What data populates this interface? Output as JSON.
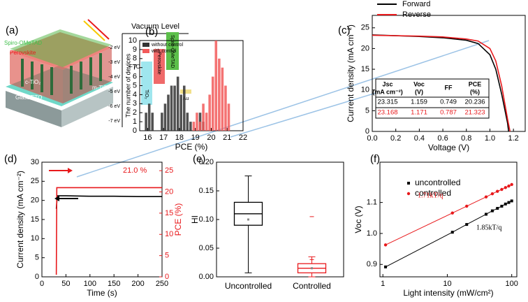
{
  "diagram": {
    "panel_label": "(a)",
    "layers": [
      "Spiro-OMeTAD",
      "Perovskite",
      "c-TiO₂",
      "m-TiO₂",
      "Glass/FTO"
    ],
    "vacuum_level": "Vacuum Level",
    "energy_ticks": [
      "-2 eV",
      "-3 eV",
      "-4 eV",
      "-5 eV",
      "-6 eV",
      "-7 eV"
    ],
    "materials": [
      "FTO",
      "TiO₂",
      "Perovskite",
      "Spiro-OMeTAD",
      "Au"
    ]
  },
  "chart_data": [
    {
      "type": "histogram",
      "panel_label": "(b)",
      "xlabel": "PCE (%)",
      "ylabel": "The number of devices",
      "bins": [
        15.8,
        16,
        16.2,
        16.4,
        16.6,
        16.8,
        17,
        17.2,
        17.4,
        17.6,
        17.8,
        18,
        18.2,
        18.4,
        18.6,
        18.8,
        19,
        19.2,
        19.4,
        19.6,
        19.8,
        20,
        20.2,
        20.4,
        20.6,
        20.8,
        21,
        21.2,
        21.4
      ],
      "series": [
        {
          "name": "without control",
          "color": "#333333",
          "values": [
            2,
            3,
            2,
            0,
            0,
            2,
            3,
            4,
            5,
            5,
            6,
            4,
            5,
            2,
            1,
            0,
            0,
            2,
            1,
            0,
            0,
            0,
            0,
            0,
            0,
            0,
            0,
            0
          ]
        },
        {
          "name": "with control",
          "color": "#f25a5a",
          "values": [
            0,
            0,
            0,
            0,
            0,
            0,
            0,
            0,
            0,
            0,
            0,
            0,
            0,
            0,
            0,
            1,
            2,
            1,
            3,
            2,
            4,
            6,
            10,
            8,
            7,
            5,
            3,
            0
          ]
        }
      ],
      "xlim": [
        15.5,
        22
      ],
      "ylim": [
        0,
        10
      ],
      "xticks": [
        16,
        17,
        18,
        19,
        20,
        21,
        22
      ],
      "yticks": [
        0,
        1,
        2,
        3,
        4,
        5,
        6,
        7,
        8,
        9,
        10
      ],
      "legend": "upper left"
    },
    {
      "type": "line",
      "panel_label": "(c)",
      "xlabel": "Voltage (V)",
      "ylabel": "Current density (mA cm⁻²)",
      "series": [
        {
          "name": "Forward",
          "color": "#000000",
          "x": [
            0,
            0.2,
            0.4,
            0.6,
            0.8,
            0.9,
            1.0,
            1.05,
            1.1,
            1.15,
            1.159
          ],
          "values": [
            23.3,
            23.1,
            22.9,
            22.6,
            22.0,
            21.2,
            18.5,
            15.0,
            9.0,
            2.0,
            0
          ]
        },
        {
          "name": "Reverse",
          "color": "#e8191c",
          "x": [
            0,
            0.2,
            0.4,
            0.6,
            0.8,
            0.9,
            1.0,
            1.05,
            1.1,
            1.15,
            1.171
          ],
          "values": [
            23.2,
            23.1,
            23.0,
            22.8,
            22.3,
            21.8,
            20.0,
            17.0,
            11.0,
            3.0,
            0
          ]
        }
      ],
      "xlim": [
        0,
        1.3
      ],
      "ylim": [
        0,
        28
      ],
      "xticks": [
        {
          "value": 0,
          "label": "0.0"
        },
        0.2,
        0.4,
        0.6,
        0.8,
        {
          "value": 1,
          "label": "1.0"
        },
        1.2
      ],
      "yticks": [
        0,
        5,
        10,
        15,
        20,
        25
      ],
      "legend": "top",
      "table": {
        "header": [
          [
            "Jsc",
            "(mA cm⁻²)"
          ],
          [
            "Voc",
            "(V)"
          ],
          [
            "FF"
          ],
          [
            "PCE",
            "(%)"
          ]
        ],
        "rows": [
          [
            "23.315",
            "1.159",
            "0.749",
            "20.236"
          ],
          [
            "23.168",
            "1.171",
            "0.787",
            "21.323"
          ]
        ],
        "row_colors": [
          "#000000",
          "#e8191c"
        ]
      }
    },
    {
      "type": "line",
      "panel_label": "(d)",
      "xlabel": "Time (s)",
      "ylabel": "Current density (mA cm⁻²)",
      "y2label": "PCE (%)",
      "y2color": "#e8191c",
      "series": [
        {
          "color": "#000000",
          "x": [
            30,
            32,
            50,
            100,
            150,
            200,
            250
          ],
          "values": [
            17.8,
            21.2,
            21.2,
            21.1,
            21.1,
            21.0,
            21.0
          ]
        },
        {
          "color": "#e8191c",
          "axis": "y2",
          "x": [
            30,
            31,
            50,
            100,
            150,
            200,
            250
          ],
          "values": [
            0.5,
            21.0,
            21.0,
            21.0,
            21.0,
            21.0,
            21.0
          ]
        }
      ],
      "xlim": [
        0,
        250
      ],
      "ylim": [
        0,
        30
      ],
      "y2lim": [
        0,
        27
      ],
      "xticks": [
        0,
        50,
        100,
        150,
        200,
        250
      ],
      "yticks": [
        0,
        5,
        10,
        15,
        20,
        25,
        30
      ],
      "y2ticks": [
        0,
        5,
        10,
        15,
        20,
        25
      ],
      "annotation": "21.0 %"
    },
    {
      "type": "box",
      "panel_label": "(e)",
      "ylabel": "HI",
      "categories": [
        "Uncontrolled",
        "Controlled"
      ],
      "boxes": [
        {
          "whislo": 0.007,
          "q1": 0.09,
          "med": 0.11,
          "q3": 0.13,
          "whishi": 0.176,
          "mean": 0.1
        },
        {
          "whislo": 0.0,
          "q1": 0.007,
          "med": 0.015,
          "q3": 0.023,
          "whishi": 0.035,
          "mean": 0.015,
          "fliers": [
            0.105,
            0.03
          ]
        }
      ],
      "colors": [
        "#000000",
        "#e8191c"
      ],
      "ylim": [
        0,
        0.2
      ],
      "yticks": [
        {
          "value": 0,
          "label": "0.00"
        },
        0.05,
        {
          "value": 0.1,
          "label": "0.10"
        },
        0.15,
        {
          "value": 0.2,
          "label": "0.20"
        }
      ]
    },
    {
      "type": "scatter",
      "panel_label": "(f)",
      "xlabel": "Light intensity (mW/cm²)",
      "ylabel": "Voc (V)",
      "xscale": "log",
      "series": [
        {
          "name": "uncontrolled",
          "color": "#000000",
          "marker": "square",
          "x": [
            1.1,
            12,
            20,
            40,
            50,
            60,
            70,
            80,
            90,
            100
          ],
          "values": [
            0.892,
            1.004,
            1.029,
            1.062,
            1.073,
            1.081,
            1.088,
            1.095,
            1.1,
            1.105
          ]
        },
        {
          "name": "controlled",
          "color": "#e8191c",
          "marker": "circle",
          "x": [
            1.1,
            12,
            20,
            40,
            50,
            60,
            70,
            80,
            90,
            100
          ],
          "values": [
            0.963,
            1.066,
            1.088,
            1.118,
            1.128,
            1.136,
            1.142,
            1.148,
            1.153,
            1.158
          ]
        }
      ],
      "annotations": [
        {
          "text": "1.71kT/q",
          "color": "#e8191c"
        },
        {
          "text": "1.85kT/q",
          "color": "#000000"
        }
      ],
      "xlim": [
        0.9,
        120
      ],
      "ylim": [
        0.86,
        1.23
      ],
      "xticks": [
        1,
        10,
        100
      ],
      "yticks": [
        0.9,
        {
          "value": 1,
          "label": "1.0"
        },
        1.1
      ],
      "legend": "upper left"
    }
  ]
}
